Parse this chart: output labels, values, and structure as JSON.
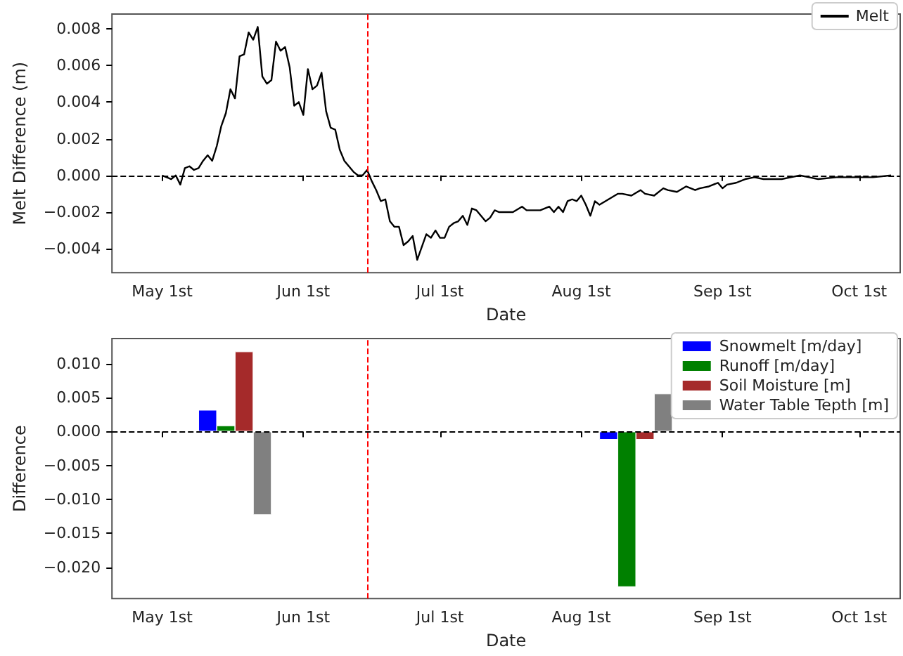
{
  "chart_data": [
    {
      "type": "line",
      "xlabel": "Date",
      "ylabel": "Melt Difference (m)",
      "legend": "top right",
      "grid": false,
      "x": [
        "--05-01",
        "--05-02",
        "--05-03",
        "--05-04",
        "--05-05",
        "--05-06",
        "--05-07",
        "--05-08",
        "--05-09",
        "--05-10",
        "--05-11",
        "--05-12",
        "--05-13",
        "--05-14",
        "--05-15",
        "--05-16",
        "--05-17",
        "--05-18",
        "--05-19",
        "--05-20",
        "--05-21",
        "--05-22",
        "--05-23",
        "--05-24",
        "--05-25",
        "--05-26",
        "--05-27",
        "--05-28",
        "--05-29",
        "--05-30",
        "--05-31",
        "--06-01",
        "--06-02",
        "--06-03",
        "--06-04",
        "--06-05",
        "--06-06",
        "--06-07",
        "--06-08",
        "--06-09",
        "--06-10",
        "--06-11",
        "--06-12",
        "--06-13",
        "--06-14",
        "--06-15",
        "--06-16",
        "--06-17",
        "--06-18",
        "--06-19",
        "--06-20",
        "--06-21",
        "--06-22",
        "--06-23",
        "--06-24",
        "--06-25",
        "--06-26",
        "--06-27",
        "--06-28",
        "--06-29",
        "--06-30",
        "--07-01",
        "--07-02",
        "--07-03",
        "--07-04",
        "--07-05",
        "--07-06",
        "--07-07",
        "--07-08",
        "--07-09",
        "--07-10",
        "--07-11",
        "--07-12",
        "--07-13",
        "--07-14",
        "--07-17",
        "--07-19",
        "--07-20",
        "--07-22",
        "--07-23",
        "--07-25",
        "--07-26",
        "--07-27",
        "--07-28",
        "--07-29",
        "--07-30",
        "--07-31",
        "--08-01",
        "--08-02",
        "--08-03",
        "--08-04",
        "--08-05",
        "--08-07",
        "--08-09",
        "--08-10",
        "--08-12",
        "--08-14",
        "--08-15",
        "--08-17",
        "--08-19",
        "--08-20",
        "--08-22",
        "--08-24",
        "--08-26",
        "--08-27",
        "--08-29",
        "--08-31",
        "--09-01",
        "--09-02",
        "--09-04",
        "--09-06",
        "--09-08",
        "--09-10",
        "--09-14",
        "--09-16",
        "--09-18",
        "--09-20",
        "--09-22",
        "--09-26",
        "--09-30",
        "--10-04",
        "--10-08"
      ],
      "series": [
        {
          "name": "Melt",
          "color": "#000000",
          "values": [
            0,
            -0.0001,
            -0.0002,
            0,
            -0.0005,
            0.0004,
            0.0005,
            0.0003,
            0.0004,
            0.0008,
            0.0011,
            0.0008,
            0.0016,
            0.0027,
            0.0034,
            0.0047,
            0.0042,
            0.0065,
            0.0066,
            0.0078,
            0.0074,
            0.0081,
            0.0054,
            0.005,
            0.0052,
            0.0073,
            0.0068,
            0.007,
            0.0059,
            0.0038,
            0.004,
            0.0033,
            0.0058,
            0.0047,
            0.0049,
            0.0056,
            0.0035,
            0.0026,
            0.0025,
            0.0014,
            0.0008,
            0.0005,
            0.0002,
            0,
            0,
            0.0003,
            -0.0003,
            -0.0008,
            -0.0014,
            -0.0013,
            -0.0025,
            -0.0028,
            -0.0028,
            -0.0038,
            -0.0036,
            -0.0033,
            -0.0046,
            -0.0039,
            -0.0032,
            -0.0034,
            -0.003,
            -0.0034,
            -0.0034,
            -0.0028,
            -0.0026,
            -0.0025,
            -0.0022,
            -0.0027,
            -0.0018,
            -0.0019,
            -0.0022,
            -0.0025,
            -0.0023,
            -0.0019,
            -0.002,
            -0.002,
            -0.0017,
            -0.0019,
            -0.0019,
            -0.0019,
            -0.0017,
            -0.002,
            -0.0017,
            -0.002,
            -0.0014,
            -0.0013,
            -0.0014,
            -0.0011,
            -0.0016,
            -0.0022,
            -0.0014,
            -0.0016,
            -0.0013,
            -0.001,
            -0.001,
            -0.0011,
            -0.0008,
            -0.001,
            -0.0011,
            -0.0007,
            -0.0008,
            -0.0009,
            -0.0006,
            -0.0008,
            -0.0007,
            -0.0006,
            -0.0004,
            -0.0007,
            -0.0005,
            -0.0004,
            -0.0002,
            -0.0001,
            -0.0002,
            -0.0002,
            -0.0001,
            0,
            -0.0001,
            -0.0002,
            -0.0001,
            -0.0001,
            -0.0001,
            0
          ]
        }
      ],
      "xlim": [
        "--04-20",
        "--10-10"
      ],
      "xticks": [
        {
          "value": "--05-01",
          "label": "May 1st"
        },
        {
          "value": "--06-01",
          "label": "Jun 1st"
        },
        {
          "value": "--07-01",
          "label": "Jul 1st"
        },
        {
          "value": "--08-01",
          "label": "Aug 1st"
        },
        {
          "value": "--09-01",
          "label": "Sep 1st"
        },
        {
          "value": "--10-01",
          "label": "Oct 1st"
        }
      ],
      "ylim": [
        -0.0053,
        0.0088
      ],
      "yticks": [
        {
          "value": -0.004,
          "label": "−0.004"
        },
        {
          "value": -0.002,
          "label": "−0.002"
        },
        {
          "value": 0,
          "label": "0.000"
        },
        {
          "value": 0.002,
          "label": "0.002"
        },
        {
          "value": 0.004,
          "label": "0.004"
        },
        {
          "value": 0.006,
          "label": "0.006"
        },
        {
          "value": 0.008,
          "label": "0.008"
        }
      ],
      "ref_lines": [
        {
          "axis": "y",
          "value": 0,
          "color": "#000000",
          "line_style": "dashed"
        },
        {
          "axis": "x",
          "value": "--06-15",
          "color": "#ff0000",
          "line_style": "dashed"
        }
      ]
    },
    {
      "type": "bar",
      "xlabel": "Date",
      "ylabel": "Difference",
      "legend": "top right",
      "grid": false,
      "series": [
        {
          "name": "Snowmelt [m/day]",
          "color": "#0000ff",
          "x": [
            "--05-11",
            "--08-07"
          ],
          "values": [
            0.0032,
            -0.0012
          ]
        },
        {
          "name": "Runoff [m/day]",
          "color": "#008000",
          "x": [
            "--05-15",
            "--08-11"
          ],
          "values": [
            0.0009,
            -0.0229
          ]
        },
        {
          "name": "Soil Moisture [m]",
          "color": "#a52a2a",
          "x": [
            "--05-19",
            "--08-15"
          ],
          "values": [
            0.0118,
            -0.0012
          ]
        },
        {
          "name": "Water Table Tepth [m]",
          "color": "#808080",
          "x": [
            "--05-23",
            "--08-19"
          ],
          "values": [
            -0.0123,
            0.0056
          ]
        }
      ],
      "xlim": [
        "--04-20",
        "--10-10"
      ],
      "xticks": [
        {
          "value": "--05-01",
          "label": "May 1st"
        },
        {
          "value": "--06-01",
          "label": "Jun 1st"
        },
        {
          "value": "--07-01",
          "label": "Jul 1st"
        },
        {
          "value": "--08-01",
          "label": "Aug 1st"
        },
        {
          "value": "--09-01",
          "label": "Sep 1st"
        },
        {
          "value": "--10-01",
          "label": "Oct 1st"
        }
      ],
      "ylim": [
        -0.0246,
        0.0137
      ],
      "yticks": [
        {
          "value": -0.02,
          "label": "−0.020"
        },
        {
          "value": -0.015,
          "label": "−0.015"
        },
        {
          "value": -0.01,
          "label": "−0.010"
        },
        {
          "value": -0.005,
          "label": "−0.005"
        },
        {
          "value": 0,
          "label": "0.000"
        },
        {
          "value": 0.005,
          "label": "0.005"
        },
        {
          "value": 0.01,
          "label": "0.010"
        }
      ],
      "ref_lines": [
        {
          "axis": "y",
          "value": 0,
          "color": "#000000",
          "line_style": "dashed"
        },
        {
          "axis": "x",
          "value": "--06-15",
          "color": "#ff0000",
          "line_style": "dashed"
        }
      ]
    }
  ]
}
